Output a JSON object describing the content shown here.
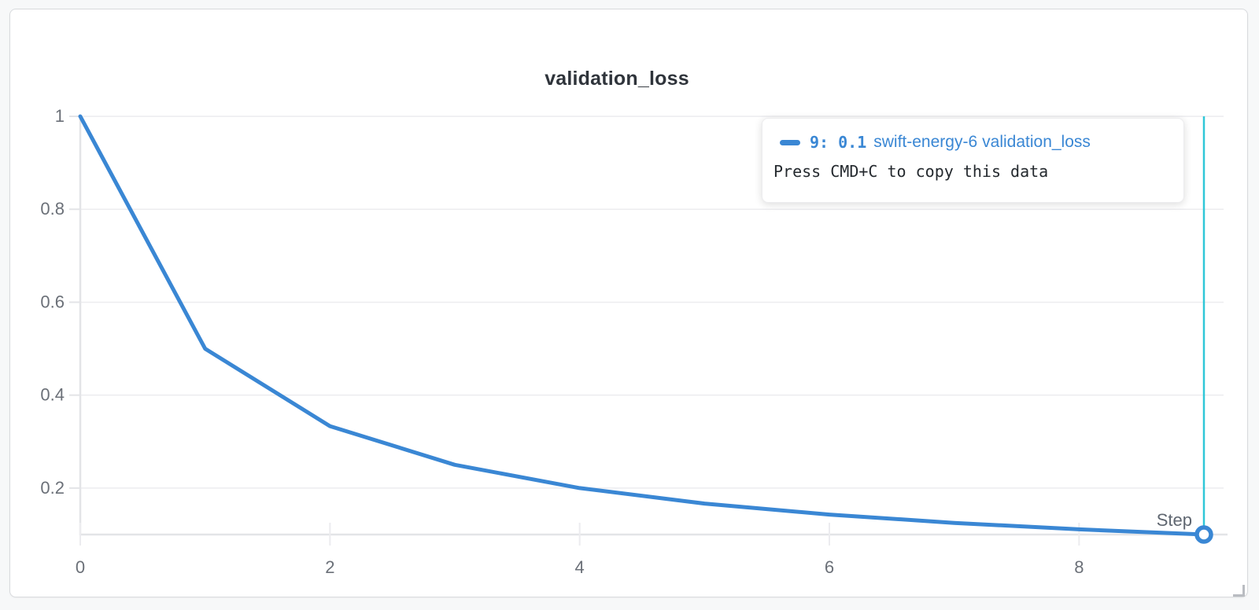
{
  "panel": {
    "title": "validation_loss"
  },
  "chart_data": {
    "type": "line",
    "title": "validation_loss",
    "xlabel": "Step",
    "ylabel": "",
    "x": [
      0,
      1,
      2,
      3,
      4,
      5,
      6,
      7,
      8,
      9
    ],
    "series": [
      {
        "name": "swift-energy-6 validation_loss",
        "color": "#3a87d4",
        "values": [
          1,
          0.5,
          0.3333,
          0.25,
          0.2,
          0.1667,
          0.1429,
          0.125,
          0.1111,
          0.1
        ]
      }
    ],
    "xlim": [
      0,
      9
    ],
    "ylim": [
      0.1,
      1
    ],
    "x_ticks": [
      0,
      2,
      4,
      6,
      8
    ],
    "y_ticks": [
      1,
      0.8,
      0.6,
      0.4,
      0.2
    ],
    "grid": "horizontal-only",
    "legend_position": "tooltip",
    "crosshair": {
      "x": 9,
      "y": 0.1,
      "color": "#2fc7d8"
    },
    "colors": {
      "gridline": "#ececef",
      "axis": "#e3e4e7",
      "tick_label": "#6b7078",
      "step_label": "#5f6670"
    }
  },
  "tooltip": {
    "value_text": "9: 0.1",
    "run_name": "swift-energy-6",
    "metric_name": "validation_loss",
    "hint": "Press CMD+C to copy this data",
    "accent_color": "#3a87d4"
  }
}
